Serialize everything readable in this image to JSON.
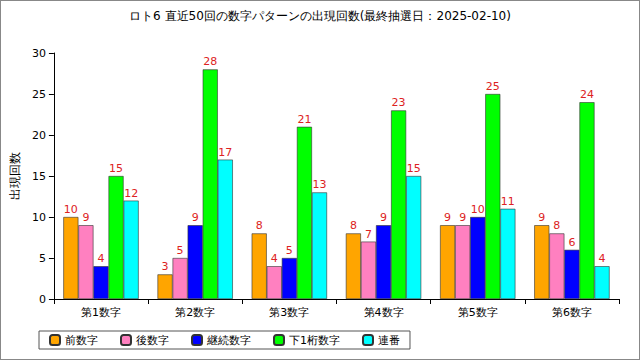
{
  "chart_data": {
    "type": "bar",
    "title": "ロト6 直近50回の数字パターンの出現回数(最終抽選日：2025-02-10)",
    "y_label": "出現回数",
    "categories": [
      "第1数字",
      "第2数字",
      "第3数字",
      "第4数字",
      "第5数字",
      "第6数字"
    ],
    "series": [
      {
        "name": "前数字",
        "color": "#ffa500",
        "values": [
          10,
          3,
          8,
          8,
          9,
          9
        ]
      },
      {
        "name": "後数字",
        "color": "#ff80c0",
        "values": [
          9,
          5,
          4,
          7,
          9,
          8
        ]
      },
      {
        "name": "継続数字",
        "color": "#0000ff",
        "values": [
          4,
          9,
          5,
          9,
          10,
          6
        ]
      },
      {
        "name": "下1桁数字",
        "color": "#00ff00",
        "values": [
          15,
          28,
          21,
          23,
          25,
          24
        ]
      },
      {
        "name": "連番",
        "color": "#00ffff",
        "values": [
          12,
          17,
          13,
          15,
          11,
          4
        ]
      }
    ],
    "ylim": [
      0,
      30
    ],
    "yticks": [
      0,
      5,
      10,
      15,
      20,
      25,
      30
    ],
    "grid": false,
    "legend": "bottom",
    "data_labels": true
  }
}
